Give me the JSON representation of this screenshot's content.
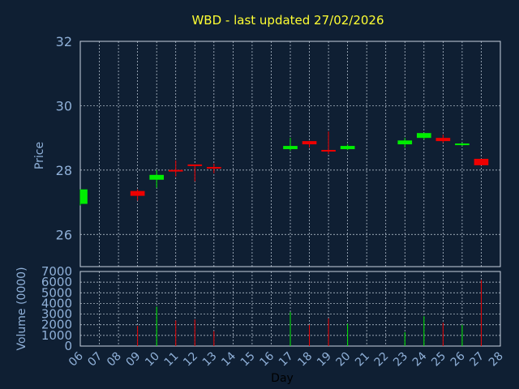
{
  "chart_data": {
    "type": "candlestick",
    "title": "WBD - last updated 27/02/2026",
    "xlabel": "Day",
    "ylabel": "Price",
    "volume_label": "Volume (0000)",
    "price_ylim": [
      25,
      32
    ],
    "price_ticks": [
      "26",
      "28",
      "30",
      "32"
    ],
    "volume_ylim": [
      0,
      7000
    ],
    "volume_ticks": [
      "0",
      "1000",
      "2000",
      "3000",
      "4000",
      "5000",
      "6000",
      "7000"
    ],
    "x_ticks": [
      "06",
      "07",
      "08",
      "09",
      "10",
      "11",
      "12",
      "13",
      "14",
      "15",
      "16",
      "17",
      "18",
      "19",
      "20",
      "21",
      "22",
      "23",
      "24",
      "25",
      "26",
      "27",
      "28"
    ],
    "grid": true,
    "up_color": "#00ee00",
    "down_color": "#ee0000",
    "candles": [
      {
        "day": "06",
        "open": 26.95,
        "close": 27.4,
        "high": 27.4,
        "low": 26.9,
        "volume": 0
      },
      {
        "day": "09",
        "open": 27.35,
        "close": 27.2,
        "high": 27.4,
        "low": 27.05,
        "volume": 1900
      },
      {
        "day": "10",
        "open": 27.7,
        "close": 27.85,
        "high": 28.0,
        "low": 27.45,
        "volume": 3700
      },
      {
        "day": "11",
        "open": 27.98,
        "close": 27.96,
        "high": 28.3,
        "low": 27.8,
        "volume": 2400
      },
      {
        "day": "12",
        "open": 28.15,
        "close": 28.12,
        "high": 28.15,
        "low": 27.65,
        "volume": 2500
      },
      {
        "day": "13",
        "open": 28.07,
        "close": 28.02,
        "high": 28.2,
        "low": 27.9,
        "volume": 1400
      },
      {
        "day": "17",
        "open": 28.65,
        "close": 28.75,
        "high": 29.0,
        "low": 28.6,
        "volume": 3200
      },
      {
        "day": "18",
        "open": 28.9,
        "close": 28.8,
        "high": 28.9,
        "low": 28.7,
        "volume": 2000
      },
      {
        "day": "19",
        "open": 28.6,
        "close": 28.55,
        "high": 29.2,
        "low": 28.5,
        "volume": 2600
      },
      {
        "day": "20",
        "open": 28.65,
        "close": 28.75,
        "high": 28.8,
        "low": 28.62,
        "volume": 2100
      },
      {
        "day": "23",
        "open": 28.8,
        "close": 28.92,
        "high": 29.0,
        "low": 28.7,
        "volume": 1300
      },
      {
        "day": "24",
        "open": 29.0,
        "close": 29.15,
        "high": 29.15,
        "low": 28.95,
        "volume": 2800
      },
      {
        "day": "25",
        "open": 29.0,
        "close": 28.9,
        "high": 29.1,
        "low": 28.85,
        "volume": 2200
      },
      {
        "day": "26",
        "open": 28.78,
        "close": 28.8,
        "high": 28.85,
        "low": 28.75,
        "volume": 2000
      },
      {
        "day": "27",
        "open": 28.35,
        "close": 28.15,
        "high": 28.35,
        "low": 28.15,
        "volume": 6200
      }
    ]
  }
}
